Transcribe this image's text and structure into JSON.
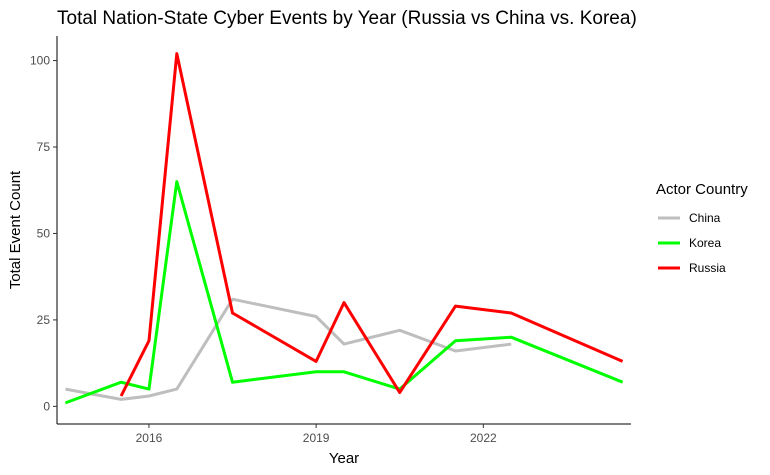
{
  "chart_data": {
    "type": "line",
    "title": "Total Nation-State Cyber Events by Year (Russia vs China vs. Korea)",
    "xlabel": "Year",
    "ylabel": "Total Event Count",
    "xlim": [
      2014.35,
      2024.65
    ],
    "ylim": [
      -5.1,
      107.1
    ],
    "x_ticks": [
      2016,
      2019,
      2022
    ],
    "y_ticks": [
      0,
      25,
      50,
      75,
      100
    ],
    "grid": false,
    "legend": {
      "title": "Actor Country",
      "position": "right"
    },
    "series": [
      {
        "name": "China",
        "color": "#bebebe",
        "points": [
          [
            2014.5,
            5
          ],
          [
            2015.5,
            2
          ],
          [
            2016,
            3
          ],
          [
            2016.5,
            5
          ],
          [
            2017.5,
            31
          ],
          [
            2019,
            26
          ],
          [
            2019.5,
            18
          ],
          [
            2020.5,
            22
          ],
          [
            2021.5,
            16
          ],
          [
            2022.5,
            18
          ]
        ]
      },
      {
        "name": "Korea",
        "color": "#00ff00",
        "points": [
          [
            2014.5,
            1
          ],
          [
            2015.5,
            7
          ],
          [
            2016,
            5
          ],
          [
            2016.5,
            65
          ],
          [
            2017.5,
            7
          ],
          [
            2019,
            10
          ],
          [
            2019.5,
            10
          ],
          [
            2020.5,
            5
          ],
          [
            2021.5,
            19
          ],
          [
            2022.5,
            20
          ],
          [
            2024.5,
            7
          ]
        ]
      },
      {
        "name": "Russia",
        "color": "#ff0000",
        "points": [
          [
            2015.5,
            3
          ],
          [
            2016,
            19
          ],
          [
            2016.5,
            102
          ],
          [
            2017.5,
            27
          ],
          [
            2019,
            13
          ],
          [
            2019.5,
            30
          ],
          [
            2020.5,
            4
          ],
          [
            2021.5,
            29
          ],
          [
            2022.5,
            27
          ],
          [
            2024.5,
            13
          ]
        ]
      }
    ]
  }
}
